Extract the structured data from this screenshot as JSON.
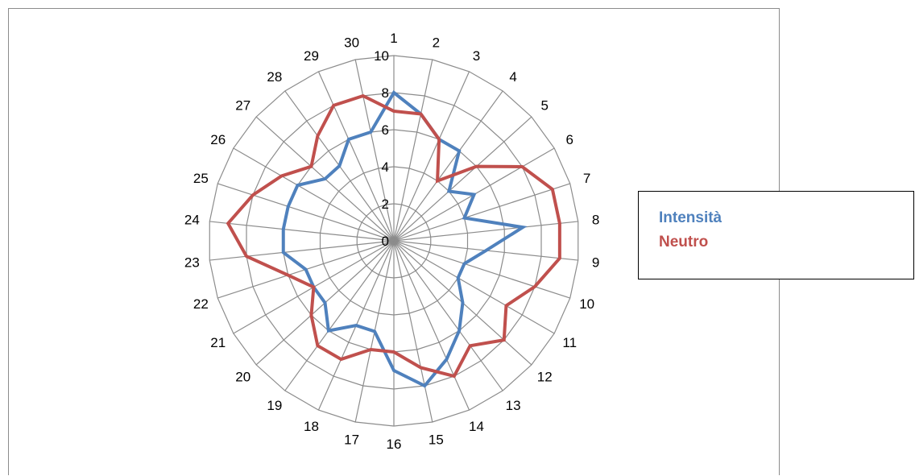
{
  "chart_data": {
    "type": "radar",
    "categories": [
      "1",
      "2",
      "3",
      "4",
      "5",
      "6",
      "7",
      "8",
      "9",
      "10",
      "11",
      "12",
      "13",
      "14",
      "15",
      "16",
      "17",
      "18",
      "19",
      "20",
      "21",
      "22",
      "23",
      "24",
      "25",
      "26",
      "27",
      "28",
      "29",
      "30"
    ],
    "rlim": [
      0,
      10
    ],
    "r_ticks": [
      "0",
      "2",
      "4",
      "6",
      "8",
      "10"
    ],
    "grid": true,
    "legend_position": "right",
    "series": [
      {
        "name": "Intensità",
        "color": "#4f81bd",
        "values": [
          8,
          7,
          6,
          6,
          4,
          5,
          4,
          7,
          5,
          4,
          4,
          5,
          6,
          7,
          8,
          7,
          5,
          5,
          6,
          5,
          5,
          5,
          6,
          6,
          6,
          6,
          5,
          5,
          6,
          6
        ]
      },
      {
        "name": "Neutro",
        "color": "#c0504d",
        "values": [
          7,
          7,
          6,
          4,
          6,
          8,
          9,
          9,
          9,
          8,
          7,
          8,
          7,
          8,
          7,
          6,
          6,
          7,
          7,
          6,
          5,
          6,
          8,
          9,
          8,
          7,
          6,
          7,
          8,
          8
        ]
      }
    ]
  }
}
